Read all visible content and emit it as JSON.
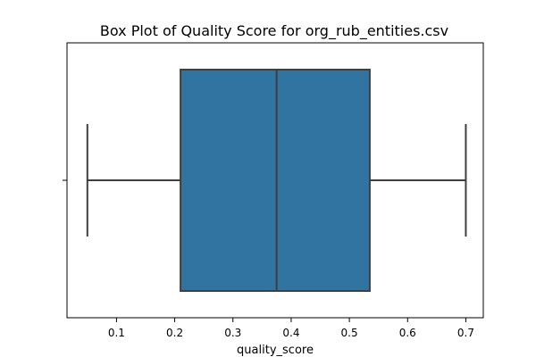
{
  "chart_data": {
    "type": "boxplot",
    "title": "Box Plot of Quality Score for org_rub_entities.csv",
    "xlabel": "quality_score",
    "ylabel": "",
    "xlim": [
      0.015,
      0.73
    ],
    "xticks": [
      0.1,
      0.2,
      0.3,
      0.4,
      0.5,
      0.6,
      0.7
    ],
    "xtick_labels": [
      "0.1",
      "0.2",
      "0.3",
      "0.4",
      "0.5",
      "0.6",
      "0.7"
    ],
    "grid": false,
    "orientation": "horizontal",
    "series": [
      {
        "name": "quality_score",
        "whisker_low": 0.05,
        "q1": 0.21,
        "median": 0.375,
        "q3": 0.535,
        "whisker_high": 0.7
      }
    ],
    "colors": {
      "box_fill": "#3274a1",
      "line": "#3f3f3f",
      "axis": "#000000"
    }
  }
}
